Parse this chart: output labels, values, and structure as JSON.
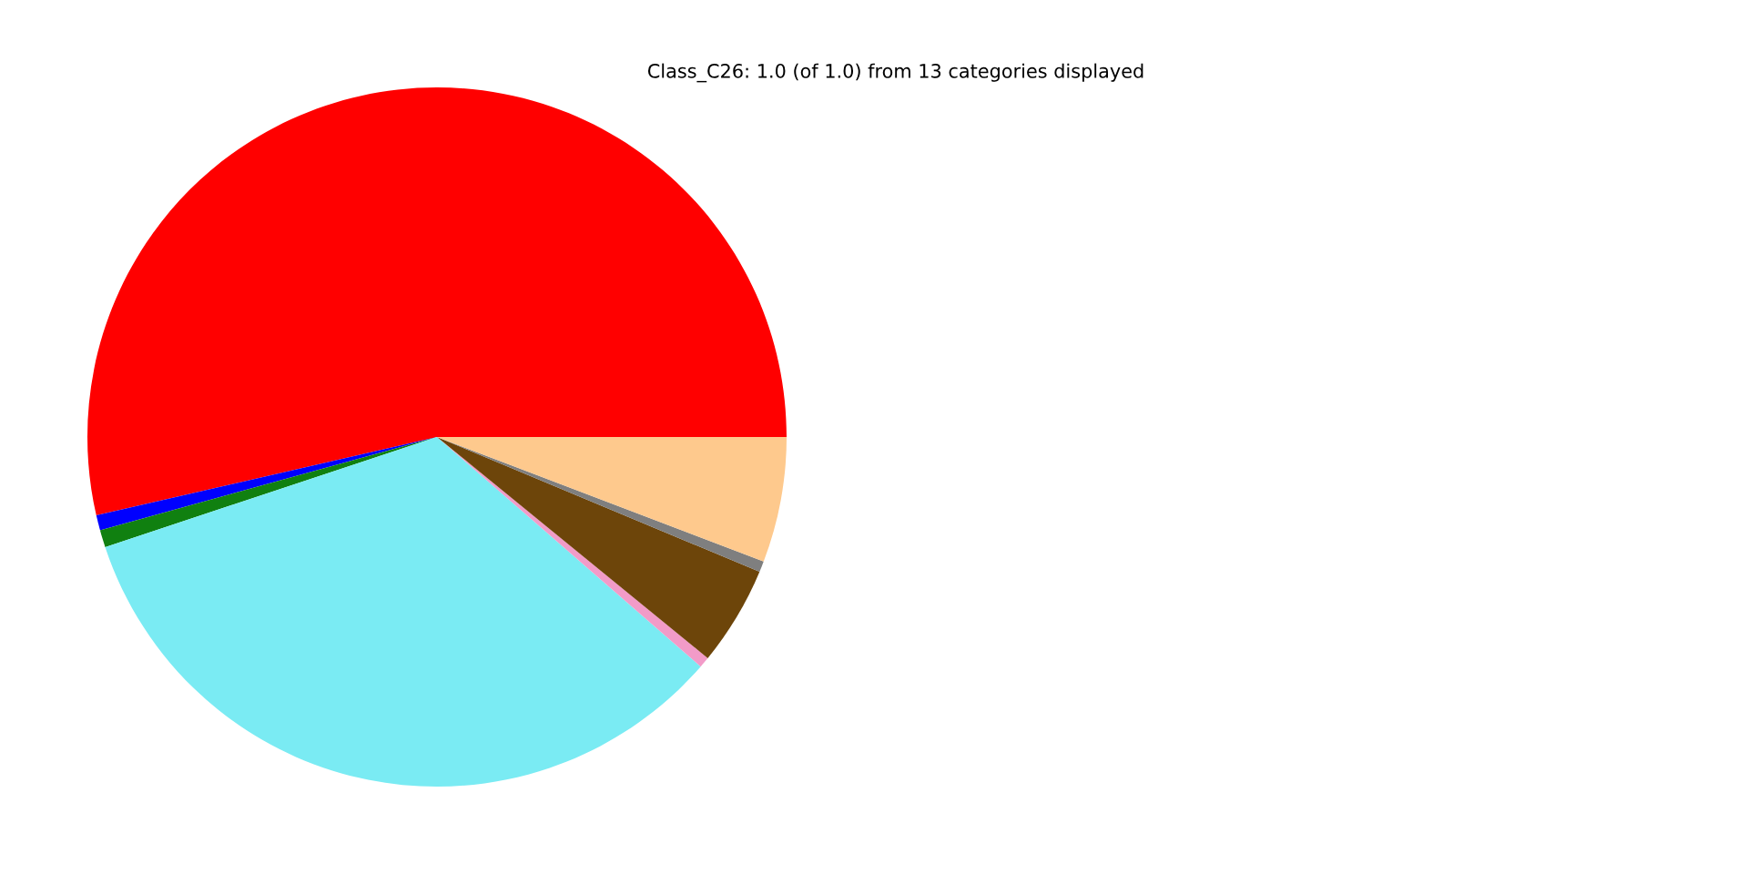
{
  "chart_data": {
    "type": "pie",
    "title": "Class_C26: 1.0 (of 1.0) from 13 categories displayed",
    "categories": [
      null,
      null,
      null,
      null,
      null,
      null,
      null,
      null
    ],
    "values": [
      53.6,
      0.7,
      0.8,
      33.5,
      0.5,
      4.6,
      0.5,
      5.8
    ],
    "colors": [
      "#ff0000",
      "#0000ff",
      "#108010",
      "#7aebf3",
      "#f29bc8",
      "#6d450a",
      "#7f7f7f",
      "#fec98d"
    ]
  }
}
